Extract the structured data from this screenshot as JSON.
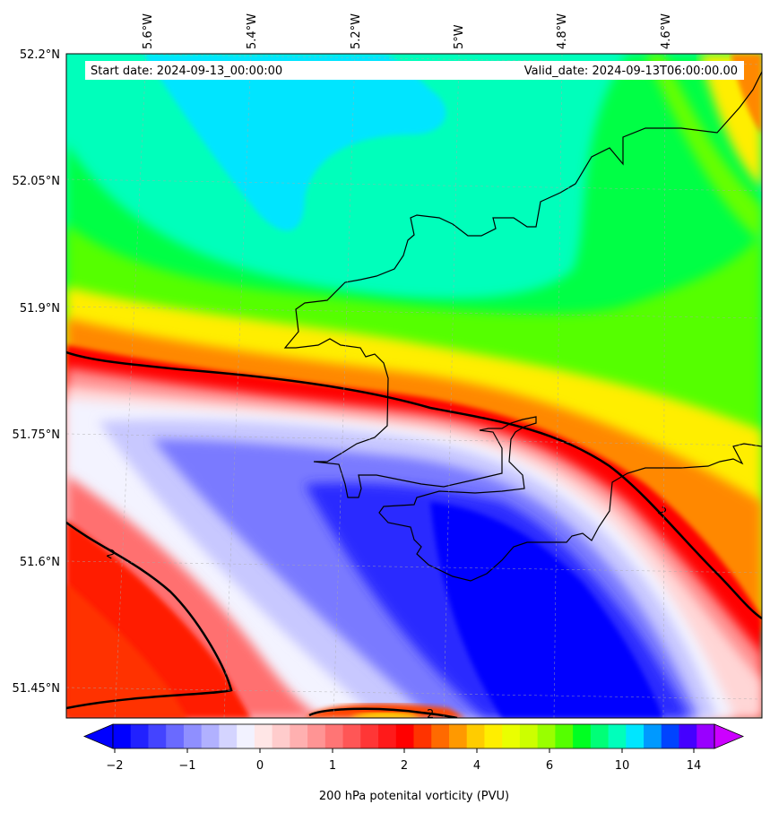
{
  "map": {
    "start_date": "Start date: 2024-09-13_00:00:00",
    "valid_date": "Valid_date: 2024-09-13T06:00:00.00",
    "lat_ticks": [
      "52.2°N",
      "52.05°N",
      "51.9°N",
      "51.75°N",
      "51.6°N",
      "51.45°N"
    ],
    "lon_ticks": [
      "5.6°W",
      "5.4°W",
      "5.2°W",
      "5°W",
      "4.8°W",
      "4.6°W"
    ],
    "contour_label": "2",
    "gridlines": true
  },
  "colorbar": {
    "label": "200 hPa potenital vorticity (PVU)",
    "ticks": [
      "−2",
      "−1",
      "0",
      "1",
      "2",
      "4",
      "6",
      "8",
      "10",
      "14"
    ],
    "colors": [
      "#0000ff",
      "#2121ff",
      "#4444ff",
      "#6a6aff",
      "#8f8fff",
      "#b1b1ff",
      "#d4d4ff",
      "#f2f2ff",
      "#ffe6e6",
      "#ffcccc",
      "#ffb0b0",
      "#ff9494",
      "#ff7575",
      "#ff5656",
      "#ff3636",
      "#ff1a1a",
      "#ff0000",
      "#ff3300",
      "#ff6a00",
      "#ff9900",
      "#ffcc00",
      "#ffee00",
      "#eaff00",
      "#ccff00",
      "#99ff00",
      "#55ff00",
      "#00ff22",
      "#00ff77",
      "#00ffbb",
      "#00e6ff",
      "#0099ff",
      "#0044ff",
      "#4400ff",
      "#9900ff"
    ],
    "extend_low": "#0000ff",
    "extend_high": "#cc00ff"
  },
  "palette": {
    "cyan": "#00e5ff",
    "aqua": "#00ffbb",
    "green": "#00ff44",
    "lime": "#66ff00",
    "yellow": "#ffee00",
    "orange": "#ff8800",
    "red": "#ff1a00",
    "blue": "#0000ff",
    "coast": "#000000"
  }
}
